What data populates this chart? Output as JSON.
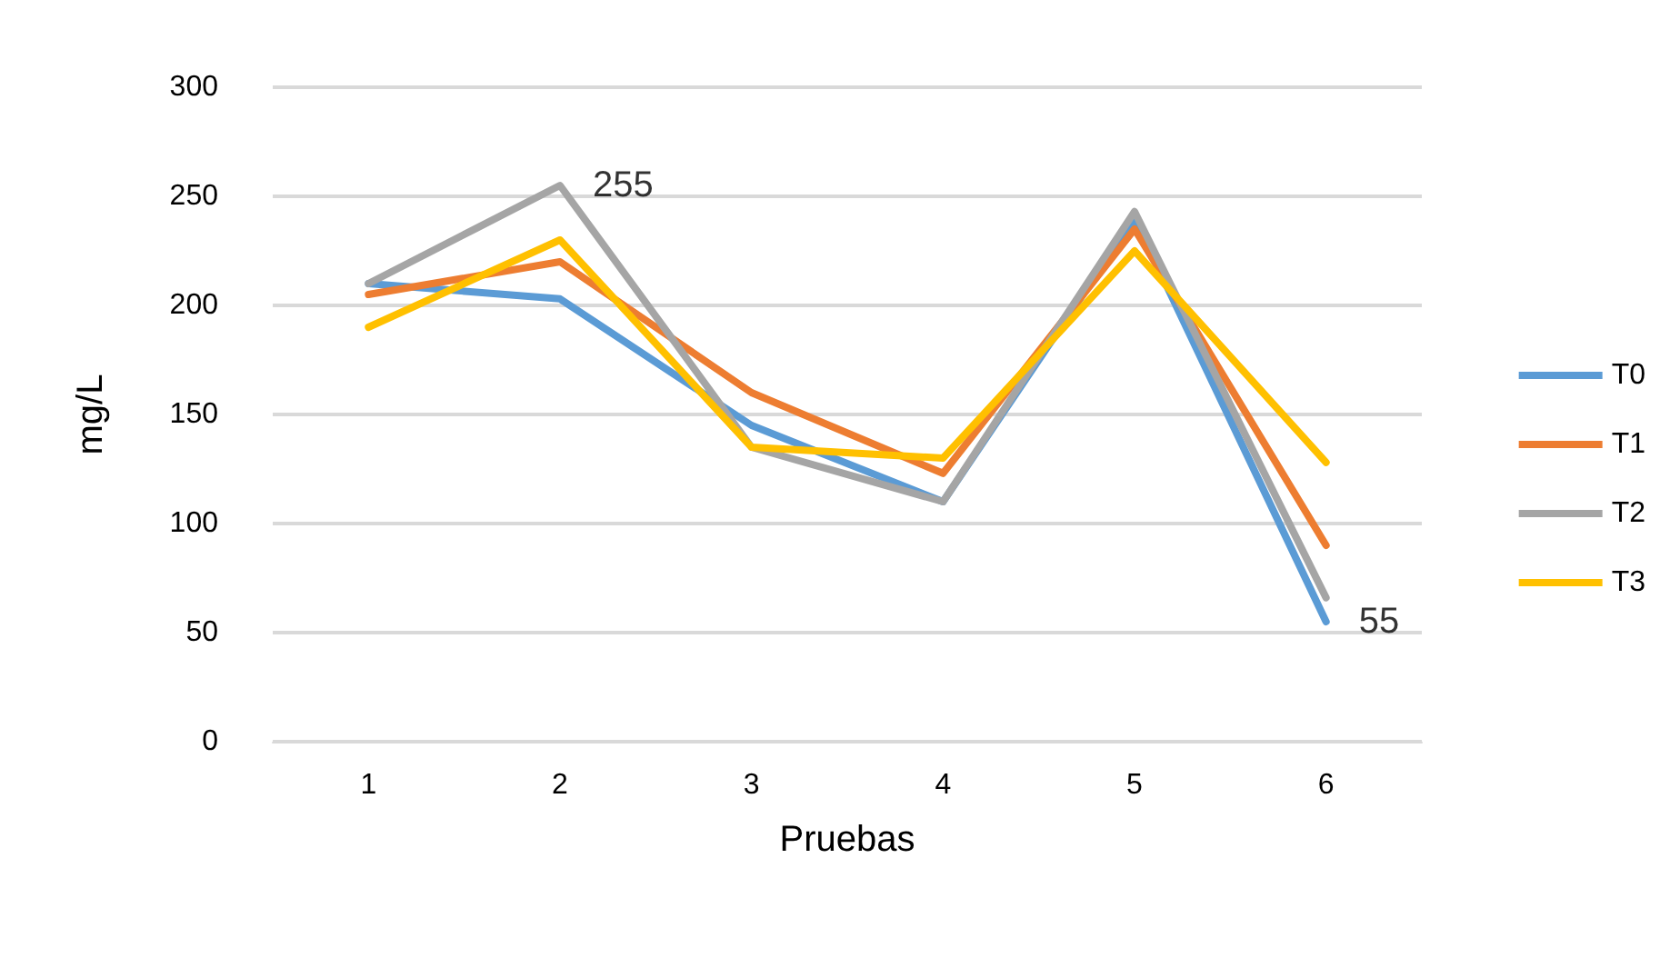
{
  "chart_data": {
    "type": "line",
    "xlabel": "Pruebas",
    "ylabel": "mg/L",
    "categories": [
      "1",
      "2",
      "3",
      "4",
      "5",
      "6"
    ],
    "series": [
      {
        "name": "T0",
        "color": "#5b9bd5",
        "values": [
          210,
          203,
          145,
          110,
          240,
          55
        ]
      },
      {
        "name": "T1",
        "color": "#ed7d31",
        "values": [
          205,
          220,
          160,
          123,
          235,
          90
        ]
      },
      {
        "name": "T2",
        "color": "#a5a5a5",
        "values": [
          210,
          255,
          135,
          110,
          243,
          66
        ]
      },
      {
        "name": "T3",
        "color": "#ffc000",
        "values": [
          190,
          230,
          135,
          130,
          225,
          128
        ]
      }
    ],
    "ylim": [
      0,
      300
    ],
    "yticks": [
      0,
      50,
      100,
      150,
      200,
      250,
      300
    ],
    "grid": "y",
    "legend": "right",
    "marker": "none",
    "line_style": "solid",
    "annotations": [
      {
        "text": "255",
        "x": "2",
        "y": 255
      },
      {
        "text": "55",
        "x": "6",
        "y": 55
      }
    ]
  }
}
